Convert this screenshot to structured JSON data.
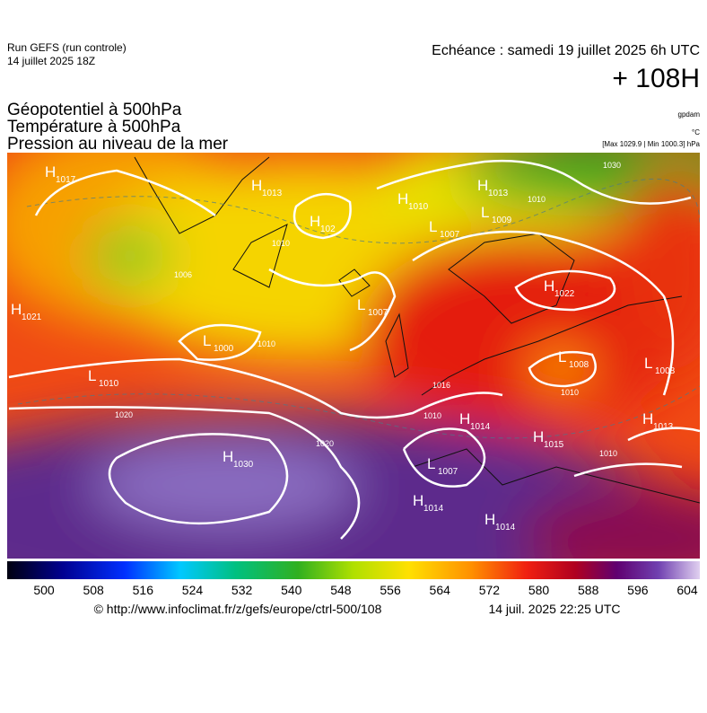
{
  "header": {
    "model": "Run GEFS (run controle)",
    "run": "14 juillet 2025 18Z",
    "valid": "Echéance : samedi 19 juillet 2025 6h UTC",
    "lead": "+ 108H"
  },
  "fields": [
    "Géopotentiel à 500hPa",
    "Température à 500hPa",
    "Pression au niveau de la mer"
  ],
  "units": {
    "geopotential": "gpdam",
    "temperature": "°C",
    "pressure": "[Max 1029.9 | Min 1000.3] hPa"
  },
  "centers": [
    {
      "kind": "H",
      "value": 1017
    },
    {
      "kind": "H",
      "value": 1013
    },
    {
      "kind": "H",
      "value": 102
    },
    {
      "kind": "H",
      "value": 1010
    },
    {
      "kind": "H",
      "value": 1013
    },
    {
      "kind": "L",
      "value": 1007
    },
    {
      "kind": "L",
      "value": 1009
    },
    {
      "kind": "H",
      "value": 1021
    },
    {
      "kind": "L",
      "value": 1000
    },
    {
      "kind": "L",
      "value": 1007
    },
    {
      "kind": "H",
      "value": 1022
    },
    {
      "kind": "L",
      "value": 1008
    },
    {
      "kind": "L",
      "value": 1008
    },
    {
      "kind": "L",
      "value": 1010
    },
    {
      "kind": "H",
      "value": 1014
    },
    {
      "kind": "H",
      "value": 1015
    },
    {
      "kind": "H",
      "value": 1013
    },
    {
      "kind": "H",
      "value": 1030
    },
    {
      "kind": "L",
      "value": 1007
    },
    {
      "kind": "H",
      "value": 1014
    },
    {
      "kind": "H",
      "value": 1014
    }
  ],
  "isobar_labels": [
    1020,
    1020,
    1010,
    1010,
    1010,
    1010,
    1016,
    1010,
    1030,
    1006,
    1010
  ],
  "colorbar": {
    "ticks": [
      500,
      508,
      516,
      524,
      532,
      540,
      548,
      556,
      564,
      572,
      580,
      588,
      596,
      604
    ]
  },
  "footer": {
    "source": "© http://www.infoclimat.fr/z/gefs/europe/ctrl-500/108",
    "generated": "14 juil. 2025 22:25 UTC"
  }
}
